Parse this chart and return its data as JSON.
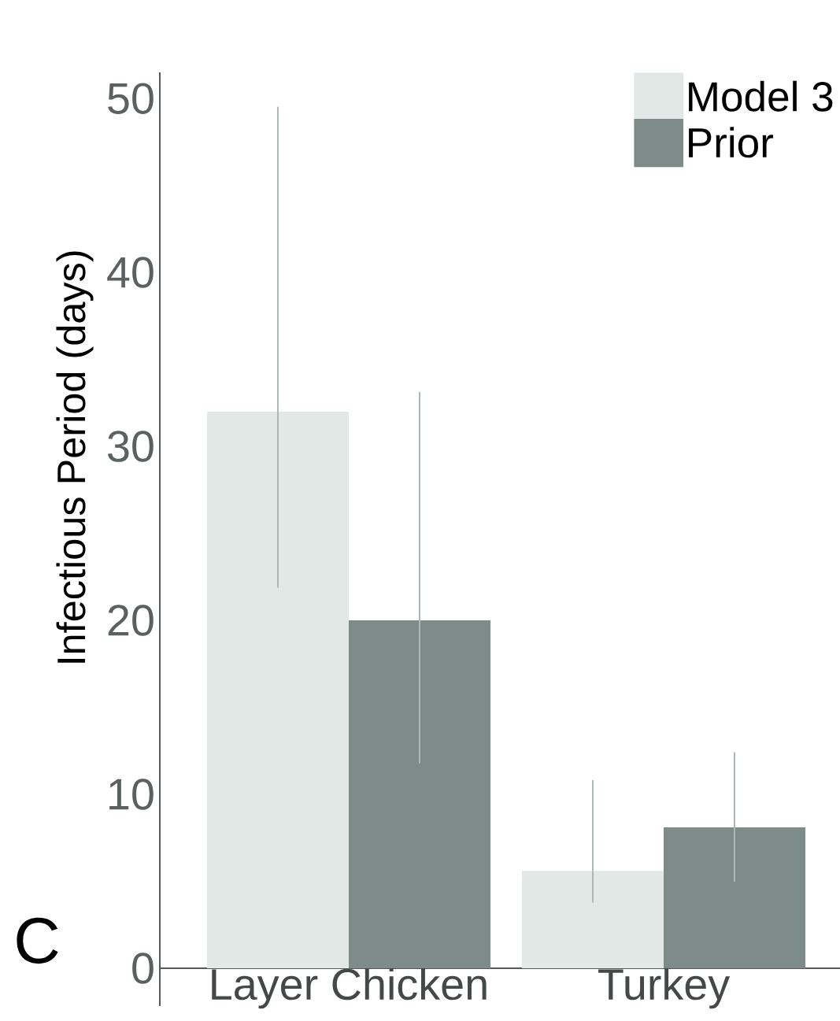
{
  "chart_data": {
    "type": "bar",
    "ylabel": "Infectious Period (days)",
    "categories": [
      "Layer Chicken",
      "Turkey"
    ],
    "series": [
      {
        "name": "Model 3",
        "color": "#e2e8e5",
        "values": [
          32,
          5.6
        ],
        "errors": [
          [
            22.3,
            49.1
          ],
          [
            4.2,
            10.4
          ]
        ]
      },
      {
        "name": "Prior",
        "color": "#7d8b89",
        "values": [
          20,
          8.1
        ],
        "errors": [
          [
            12.2,
            32.7
          ],
          [
            5.4,
            12
          ]
        ]
      }
    ],
    "ylim": [
      0,
      51.5
    ],
    "yticks": [
      0,
      10,
      20,
      30,
      40,
      50
    ],
    "legend": "top right",
    "annotations": [
      "C"
    ]
  }
}
